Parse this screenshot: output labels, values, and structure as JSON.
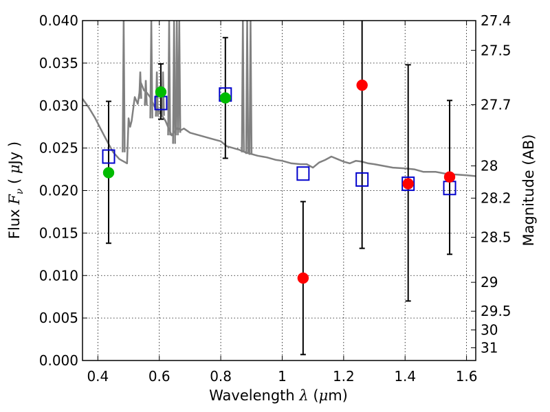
{
  "chart_data": {
    "type": "scatter",
    "xlabel": "Wavelength  λ (μm)",
    "xlabel_parts": [
      "Wavelength  ",
      "λ",
      " (",
      "μ",
      "m)"
    ],
    "ylabel_parts": [
      "Flux  ",
      "F",
      "ν",
      "  ( ",
      "μ",
      "Jy )"
    ],
    "y2label": "Magnitude (AB)",
    "xlim": [
      0.35,
      1.63
    ],
    "ylim": [
      0.0,
      0.04
    ],
    "grid": true,
    "x_ticks": [
      0.4,
      0.6,
      0.8,
      1.0,
      1.2,
      1.4,
      1.6
    ],
    "x_tick_labels": [
      "0.4",
      "0.6",
      "0.8",
      "1",
      "1.2",
      "1.4",
      "1.6"
    ],
    "y_ticks": [
      0.0,
      0.005,
      0.01,
      0.015,
      0.02,
      0.025,
      0.03,
      0.035,
      0.04
    ],
    "y_tick_labels": [
      "0.000",
      "0.005",
      "0.010",
      "0.015",
      "0.020",
      "0.025",
      "0.030",
      "0.035",
      "0.040"
    ],
    "y2_tick_labels": [
      "27.4",
      "27.5",
      "27.7",
      "28",
      "28.2",
      "28.5",
      "29",
      "29.5",
      "30",
      "31"
    ],
    "y2_tick_flux": [
      0.04,
      0.0365,
      0.0301,
      0.0229,
      0.0191,
      0.0145,
      0.0092,
      0.0058,
      0.0036,
      0.0015
    ],
    "colors": {
      "model": "#808080",
      "observed_hst": "#00bb00",
      "observed_ir": "#ff0000",
      "model_band": "#0000cc",
      "errorbar": "#000000"
    },
    "series": [
      {
        "kind": "line",
        "color": "#808080",
        "x": [
          0.35,
          0.37,
          0.39,
          0.41,
          0.43,
          0.45,
          0.47,
          0.49,
          0.495,
          0.5,
          0.505,
          0.51,
          0.52,
          0.53,
          0.54,
          0.55,
          0.56,
          0.57,
          0.58,
          0.59,
          0.6,
          0.62,
          0.64,
          0.65,
          0.66,
          0.67,
          0.68,
          0.7,
          0.72,
          0.74,
          0.76,
          0.78,
          0.8,
          0.82,
          0.84,
          0.86,
          0.88,
          0.9,
          0.92,
          0.95,
          0.98,
          1.0,
          1.03,
          1.06,
          1.08,
          1.1,
          1.12,
          1.14,
          1.16,
          1.18,
          1.2,
          1.22,
          1.24,
          1.26,
          1.28,
          1.3,
          1.33,
          1.36,
          1.4,
          1.43,
          1.46,
          1.5,
          1.53,
          1.56,
          1.6,
          1.63
        ],
        "y": [
          0.0308,
          0.0298,
          0.0286,
          0.0272,
          0.0258,
          0.0245,
          0.0237,
          0.0233,
          0.0232,
          0.0285,
          0.0275,
          0.0282,
          0.031,
          0.0302,
          0.0327,
          0.0318,
          0.0315,
          0.031,
          0.0302,
          0.0295,
          0.0293,
          0.0282,
          0.0265,
          0.027,
          0.0274,
          0.0271,
          0.0273,
          0.0268,
          0.0266,
          0.0264,
          0.0262,
          0.026,
          0.0258,
          0.0252,
          0.025,
          0.0248,
          0.0245,
          0.0243,
          0.0241,
          0.0239,
          0.0236,
          0.0235,
          0.0232,
          0.0231,
          0.0231,
          0.0227,
          0.0233,
          0.0236,
          0.024,
          0.0237,
          0.0234,
          0.0232,
          0.0235,
          0.0234,
          0.0232,
          0.0231,
          0.0229,
          0.0227,
          0.0226,
          0.0225,
          0.0222,
          0.0222,
          0.022,
          0.0219,
          0.0218,
          0.0217
        ]
      },
      {
        "kind": "line-spikes",
        "color": "#808080",
        "x": [
          0.484,
          0.538,
          0.556,
          0.574,
          0.592,
          0.612,
          0.632,
          0.648,
          0.657,
          0.665,
          0.872,
          0.886,
          0.897
        ],
        "y_low": [
          0.0245,
          0.0308,
          0.03,
          0.0285,
          0.0287,
          0.0288,
          0.0265,
          0.0255,
          0.0265,
          0.0268,
          0.0245,
          0.0243,
          0.0242
        ],
        "y_high": [
          0.04,
          0.034,
          0.033,
          0.04,
          0.034,
          0.034,
          0.04,
          0.04,
          0.04,
          0.04,
          0.04,
          0.04,
          0.04
        ]
      },
      {
        "kind": "errorbar",
        "color": "#000000",
        "x": [
          0.435,
          0.605,
          0.815,
          1.068,
          1.26,
          1.41,
          1.545
        ],
        "y_low": [
          0.0138,
          0.0284,
          0.0238,
          0.0007,
          0.0132,
          0.007,
          0.0125
        ],
        "y_high": [
          0.0305,
          0.0349,
          0.038,
          0.0187,
          0.0402,
          0.0348,
          0.0306
        ]
      },
      {
        "kind": "square",
        "color": "#0000cc",
        "x": [
          0.435,
          0.605,
          0.815,
          1.068,
          1.26,
          1.41,
          1.545
        ],
        "y": [
          0.024,
          0.0303,
          0.0313,
          0.022,
          0.0213,
          0.0208,
          0.0203
        ]
      },
      {
        "kind": "circle",
        "color": "#00bb00",
        "x": [
          0.435,
          0.605,
          0.815
        ],
        "y": [
          0.0221,
          0.0316,
          0.0309
        ]
      },
      {
        "kind": "circle",
        "color": "#ff0000",
        "x": [
          1.068,
          1.26,
          1.41,
          1.545
        ],
        "y": [
          0.0097,
          0.0324,
          0.0208,
          0.0216
        ]
      }
    ]
  }
}
